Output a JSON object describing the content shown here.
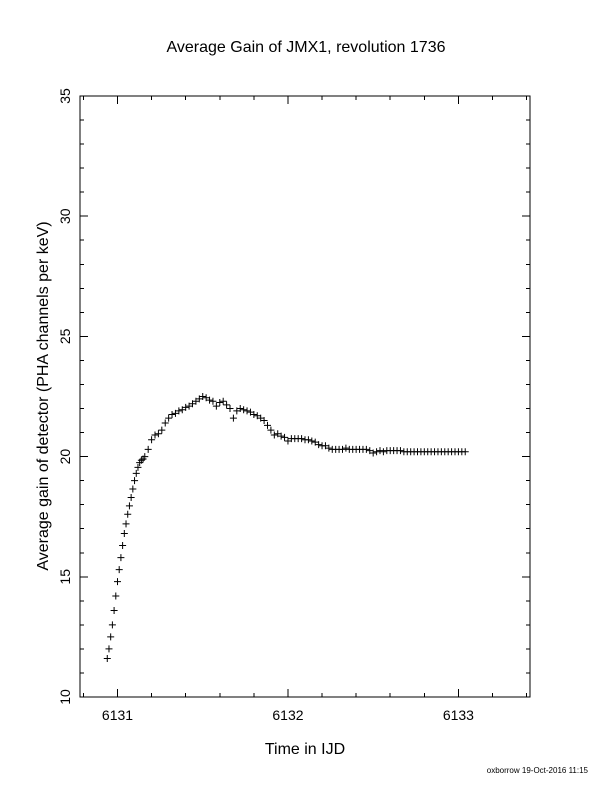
{
  "chart_data": {
    "type": "scatter",
    "title": "Average Gain of JMX1, revolution 1736",
    "xlabel": "Time in IJD",
    "ylabel": "Average gain of detector (PHA channels per keV)",
    "xlim": [
      6130.78,
      6133.42
    ],
    "ylim": [
      10,
      35
    ],
    "xticks": [
      6131,
      6132,
      6133
    ],
    "xtick_labels": [
      "6131",
      "6132",
      "6133"
    ],
    "xminor_step": 0.2,
    "yticks": [
      10,
      15,
      20,
      25,
      30,
      35
    ],
    "ytick_labels": [
      "10",
      "15",
      "20",
      "25",
      "30",
      "35"
    ],
    "yminor_step": 1,
    "marker": "+",
    "grid": false,
    "legend": "none",
    "footer": "oxborrow 19-Oct-2016 11:15",
    "series": [
      {
        "x": [
          6130.94,
          6130.95,
          6130.96,
          6130.97,
          6130.98,
          6130.99,
          6131.0,
          6131.01,
          6131.02,
          6131.03,
          6131.04,
          6131.05,
          6131.06,
          6131.07,
          6131.08,
          6131.09,
          6131.1,
          6131.11,
          6131.12,
          6131.13,
          6131.14,
          6131.15,
          6131.16,
          6131.18,
          6131.2,
          6131.22,
          6131.24,
          6131.26,
          6131.28,
          6131.3,
          6131.32,
          6131.34,
          6131.36,
          6131.38,
          6131.4,
          6131.42,
          6131.44,
          6131.46,
          6131.48,
          6131.5,
          6131.52,
          6131.54,
          6131.56,
          6131.58,
          6131.6,
          6131.62,
          6131.64,
          6131.66,
          6131.68,
          6131.7,
          6131.72,
          6131.74,
          6131.76,
          6131.78,
          6131.8,
          6131.82,
          6131.84,
          6131.86,
          6131.88,
          6131.9,
          6131.92,
          6131.94,
          6131.96,
          6131.98,
          6132.0,
          6132.02,
          6132.04,
          6132.06,
          6132.08,
          6132.1,
          6132.12,
          6132.14,
          6132.16,
          6132.18,
          6132.2,
          6132.22,
          6132.24,
          6132.26,
          6132.28,
          6132.3,
          6132.32,
          6132.34,
          6132.36,
          6132.38,
          6132.4,
          6132.42,
          6132.44,
          6132.46,
          6132.48,
          6132.5,
          6132.52,
          6132.54,
          6132.56,
          6132.58,
          6132.6,
          6132.62,
          6132.64,
          6132.66,
          6132.68,
          6132.7,
          6132.72,
          6132.74,
          6132.76,
          6132.78,
          6132.8,
          6132.82,
          6132.84,
          6132.86,
          6132.88,
          6132.9,
          6132.92,
          6132.94,
          6132.96,
          6132.98,
          6133.0,
          6133.02,
          6133.04
        ],
        "y": [
          11.6,
          12.0,
          12.5,
          13.0,
          13.6,
          14.2,
          14.8,
          15.3,
          15.8,
          16.3,
          16.8,
          17.2,
          17.6,
          17.95,
          18.3,
          18.65,
          19.0,
          19.3,
          19.55,
          19.75,
          19.85,
          19.9,
          20.0,
          20.3,
          20.7,
          20.9,
          20.95,
          21.1,
          21.4,
          21.6,
          21.75,
          21.8,
          21.9,
          21.95,
          22.05,
          22.1,
          22.2,
          22.3,
          22.4,
          22.5,
          22.45,
          22.35,
          22.3,
          22.1,
          22.25,
          22.3,
          22.15,
          22.0,
          21.6,
          21.9,
          22.0,
          21.95,
          21.9,
          21.85,
          21.75,
          21.7,
          21.6,
          21.5,
          21.3,
          21.1,
          20.9,
          20.95,
          20.85,
          20.8,
          20.65,
          20.75,
          20.75,
          20.75,
          20.75,
          20.7,
          20.7,
          20.65,
          20.6,
          20.5,
          20.45,
          20.45,
          20.35,
          20.3,
          20.3,
          20.3,
          20.3,
          20.35,
          20.3,
          20.3,
          20.3,
          20.3,
          20.3,
          20.3,
          20.25,
          20.15,
          20.2,
          20.25,
          20.2,
          20.25,
          20.25,
          20.25,
          20.25,
          20.25,
          20.2,
          20.2,
          20.2,
          20.2,
          20.2,
          20.2,
          20.2,
          20.2,
          20.2,
          20.2,
          20.2,
          20.2,
          20.2,
          20.2,
          20.2,
          20.2,
          20.2,
          20.2,
          20.2
        ]
      }
    ]
  }
}
